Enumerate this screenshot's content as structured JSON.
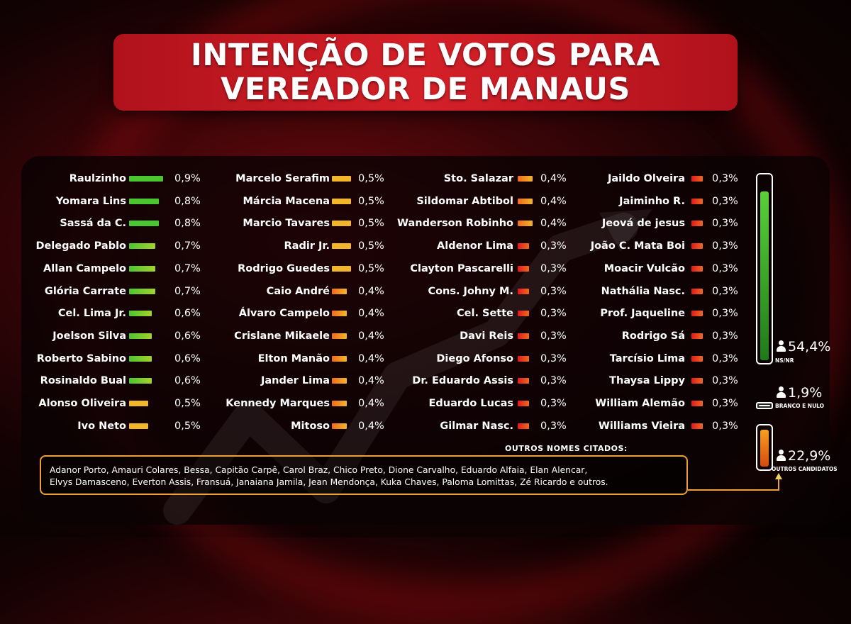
{
  "title": {
    "line1": "INTENÇÃO DE VOTOS PARA",
    "line2": "VEREADOR DE MANAUS"
  },
  "colors": {
    "green": "#4cc630",
    "lime": "#a6d22c",
    "yellow": "#f2b62a",
    "orange": "#ef6a20",
    "red": "#e0191e"
  },
  "chart_data": {
    "type": "bar",
    "orientation": "horizontal",
    "unit": "%",
    "columns": [
      {
        "categories": [
          "Raulzinho",
          "Yomara Lins",
          "Sassá da C.",
          "Delegado Pablo",
          "Allan Campelo",
          "Glória Carrate",
          "Cel. Lima Jr.",
          "Joelson Silva",
          "Roberto Sabino",
          "Rosinaldo Bual",
          "Alonso Oliveira",
          "Ivo Neto"
        ],
        "values": [
          0.9,
          0.8,
          0.8,
          0.7,
          0.7,
          0.7,
          0.6,
          0.6,
          0.6,
          0.6,
          0.5,
          0.5
        ],
        "labels": [
          "0,9%",
          "0,8%",
          "0,8%",
          "0,7%",
          "0,7%",
          "0,7%",
          "0,6%",
          "0,6%",
          "0,6%",
          "0,6%",
          "0,5%",
          "0,5%"
        ]
      },
      {
        "categories": [
          "Marcelo Serafim",
          "Márcia Macena",
          "Marcio Tavares",
          "Radir Jr.",
          "Rodrigo Guedes",
          "Caio André",
          "Álvaro Campelo",
          "Crislane Mikaele",
          "Elton Manão",
          "Jander Lima",
          "Kennedy Marques",
          "Mitoso"
        ],
        "values": [
          0.5,
          0.5,
          0.5,
          0.5,
          0.5,
          0.4,
          0.4,
          0.4,
          0.4,
          0.4,
          0.4,
          0.4
        ],
        "labels": [
          "0,5%",
          "0,5%",
          "0,5%",
          "0,5%",
          "0,5%",
          "0,4%",
          "0,4%",
          "0,4%",
          "0,4%",
          "0,4%",
          "0,4%",
          "0,4%"
        ]
      },
      {
        "categories": [
          "Sto. Salazar",
          "Sildomar Abtibol",
          "Wanderson Robinho",
          "Aldenor Lima",
          "Clayton Pascarelli",
          "Cons. Johny M.",
          "Cel. Sette",
          "Davi Reis",
          "Diego Afonso",
          "Dr. Eduardo Assis",
          "Eduardo Lucas",
          "Gilmar Nasc."
        ],
        "values": [
          0.4,
          0.4,
          0.4,
          0.3,
          0.3,
          0.3,
          0.3,
          0.3,
          0.3,
          0.3,
          0.3,
          0.3
        ],
        "labels": [
          "0,4%",
          "0,4%",
          "0,4%",
          "0,3%",
          "0,3%",
          "0,3%",
          "0,3%",
          "0,3%",
          "0,3%",
          "0,3%",
          "0,3%",
          "0,3%"
        ]
      },
      {
        "categories": [
          "Jaildo Olveira",
          "Jaiminho R.",
          "Jeová de jesus",
          "João C. Mata Boi",
          "Moacir Vulcão",
          "Nathália Nasc.",
          "Prof. Jaqueline",
          "Rodrigo Sá",
          "Tarcísio Lima",
          "Thaysa Lippy",
          "William Alemão",
          "Williams Vieira"
        ],
        "values": [
          0.3,
          0.3,
          0.3,
          0.3,
          0.3,
          0.3,
          0.3,
          0.3,
          0.3,
          0.3,
          0.3,
          0.3
        ],
        "labels": [
          "0,3%",
          "0,3%",
          "0,3%",
          "0,3%",
          "0,3%",
          "0,3%",
          "0,3%",
          "0,3%",
          "0,3%",
          "0,3%",
          "0,3%",
          "0,3%"
        ]
      }
    ],
    "summary": [
      {
        "label": "NS/NR",
        "value": 54.4,
        "text": "54,4%"
      },
      {
        "label": "BRANCO E NULO",
        "value": 1.9,
        "text": "1,9%"
      },
      {
        "label": "OUTROS CANDIDATOS",
        "value": 22.9,
        "text": "22,9%"
      }
    ]
  },
  "others": {
    "heading": "OUTROS NOMES CITADOS:",
    "line1": "Adanor Porto, Amauri Colares, Bessa, Capitão Carpê, Carol Braz, Chico Preto, Dione Carvalho, Eduardo Alfaia, Elan Alencar,",
    "line2": "Elvys Damasceno, Everton Assis, Fransuá, Janaiana Jamila, Jean Mendonça, Kuka Chaves, Paloma Lomittas, Zé Ricardo e outros."
  }
}
